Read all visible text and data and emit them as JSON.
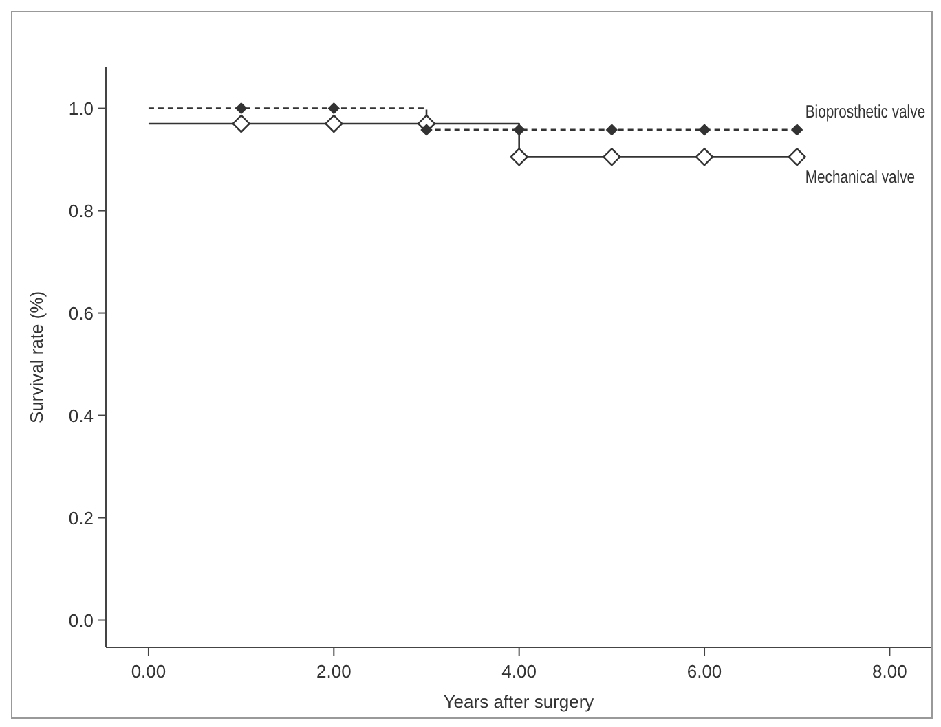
{
  "chart_data": {
    "type": "step",
    "xlabel": "Years after surgery",
    "ylabel": "Survival rate (%)",
    "xlim": [
      -0.46,
      8.45
    ],
    "ylim": [
      -0.053,
      1.08
    ],
    "xticks": [
      {
        "value": 0,
        "label": "0.00"
      },
      {
        "value": 2,
        "label": "2.00"
      },
      {
        "value": 4,
        "label": "4.00"
      },
      {
        "value": 6,
        "label": "6.00"
      },
      {
        "value": 8,
        "label": "8.00"
      }
    ],
    "yticks": [
      {
        "value": 0,
        "label": "0.0"
      },
      {
        "value": 0.2,
        "label": "0.2"
      },
      {
        "value": 0.4,
        "label": "0.4"
      },
      {
        "value": 0.6,
        "label": "0.6"
      },
      {
        "value": 0.8,
        "label": "0.8"
      },
      {
        "value": 1,
        "label": "1.0"
      }
    ],
    "grid": false,
    "series": [
      {
        "name": "Bioprosthetic valve",
        "color": "#333333",
        "line_style": "dashed",
        "marker": "none",
        "x": [
          0,
          3,
          7
        ],
        "values": [
          1,
          0.958,
          0.958
        ]
      },
      {
        "name": "Mechanical valve",
        "color": "#333333",
        "line_style": "solid",
        "marker": "none",
        "x": [
          0,
          4,
          7
        ],
        "values": [
          0.97,
          0.905,
          0.905
        ]
      },
      {
        "type": "scatter",
        "color": "#333333",
        "marker": "diamond",
        "x": [
          1,
          2,
          3,
          4,
          5,
          6,
          7
        ],
        "values": [
          0.97,
          0.97,
          0.97,
          0.905,
          0.905,
          0.905,
          0.905
        ]
      },
      {
        "type": "scatter",
        "color": "#333333",
        "marker": "diamond",
        "x": [
          1,
          2,
          3,
          4,
          5,
          6,
          7
        ],
        "values": [
          1,
          1,
          0.958,
          0.958,
          0.958,
          0.958,
          0.958
        ]
      }
    ]
  }
}
